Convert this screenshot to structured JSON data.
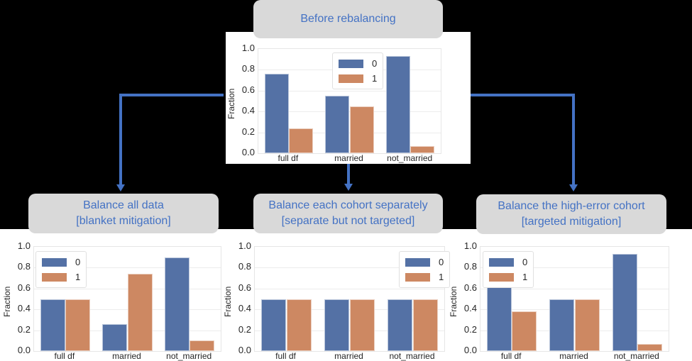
{
  "colors": {
    "class0": "#5471a5",
    "class1": "#cd8862",
    "title_text": "#4472c4",
    "title_bg": "#d9d9d9",
    "arrow": "#4472c4"
  },
  "top": {
    "title": "Before rebalancing"
  },
  "bottom": [
    {
      "title_line1": "Balance all data",
      "title_line2": "[blanket mitigation]"
    },
    {
      "title_line1": "Balance each cohort separately",
      "title_line2": "[separate but not targeted]"
    },
    {
      "title_line1": "Balance the high-error cohort",
      "title_line2": "[targeted mitigation]"
    }
  ],
  "legend": [
    "0",
    "1"
  ],
  "yticks": [
    "0.0",
    "0.2",
    "0.4",
    "0.6",
    "0.8",
    "1.0"
  ],
  "ylabel": "Fraction",
  "categories": [
    "full df",
    "married",
    "not_married"
  ],
  "chart_data": [
    {
      "type": "bar",
      "title": "Before rebalancing",
      "categories": [
        "full df",
        "married",
        "not_married"
      ],
      "series": [
        {
          "name": "0",
          "values": [
            0.76,
            0.55,
            0.93
          ]
        },
        {
          "name": "1",
          "values": [
            0.24,
            0.45,
            0.07
          ]
        }
      ],
      "xlabel": "",
      "ylabel": "Fraction",
      "ylim": [
        0,
        1.0
      ],
      "legend_position": "upper center"
    },
    {
      "type": "bar",
      "title": "Balance all data [blanket mitigation]",
      "categories": [
        "full df",
        "married",
        "not_married"
      ],
      "series": [
        {
          "name": "0",
          "values": [
            0.5,
            0.26,
            0.9
          ]
        },
        {
          "name": "1",
          "values": [
            0.5,
            0.74,
            0.1
          ]
        }
      ],
      "xlabel": "",
      "ylabel": "Fraction",
      "ylim": [
        0,
        1.0
      ],
      "legend_position": "upper left"
    },
    {
      "type": "bar",
      "title": "Balance each cohort separately [separate but not targeted]",
      "categories": [
        "full df",
        "married",
        "not_married"
      ],
      "series": [
        {
          "name": "0",
          "values": [
            0.5,
            0.5,
            0.5
          ]
        },
        {
          "name": "1",
          "values": [
            0.5,
            0.5,
            0.5
          ]
        }
      ],
      "xlabel": "",
      "ylabel": "Fraction",
      "ylim": [
        0,
        1.0
      ],
      "legend_position": "upper right"
    },
    {
      "type": "bar",
      "title": "Balance the high-error cohort [targeted mitigation]",
      "categories": [
        "full df",
        "married",
        "not_married"
      ],
      "series": [
        {
          "name": "0",
          "values": [
            0.62,
            0.5,
            0.93
          ]
        },
        {
          "name": "1",
          "values": [
            0.38,
            0.5,
            0.07
          ]
        }
      ],
      "xlabel": "",
      "ylabel": "Fraction",
      "ylim": [
        0,
        1.0
      ],
      "legend_position": "upper left"
    }
  ]
}
